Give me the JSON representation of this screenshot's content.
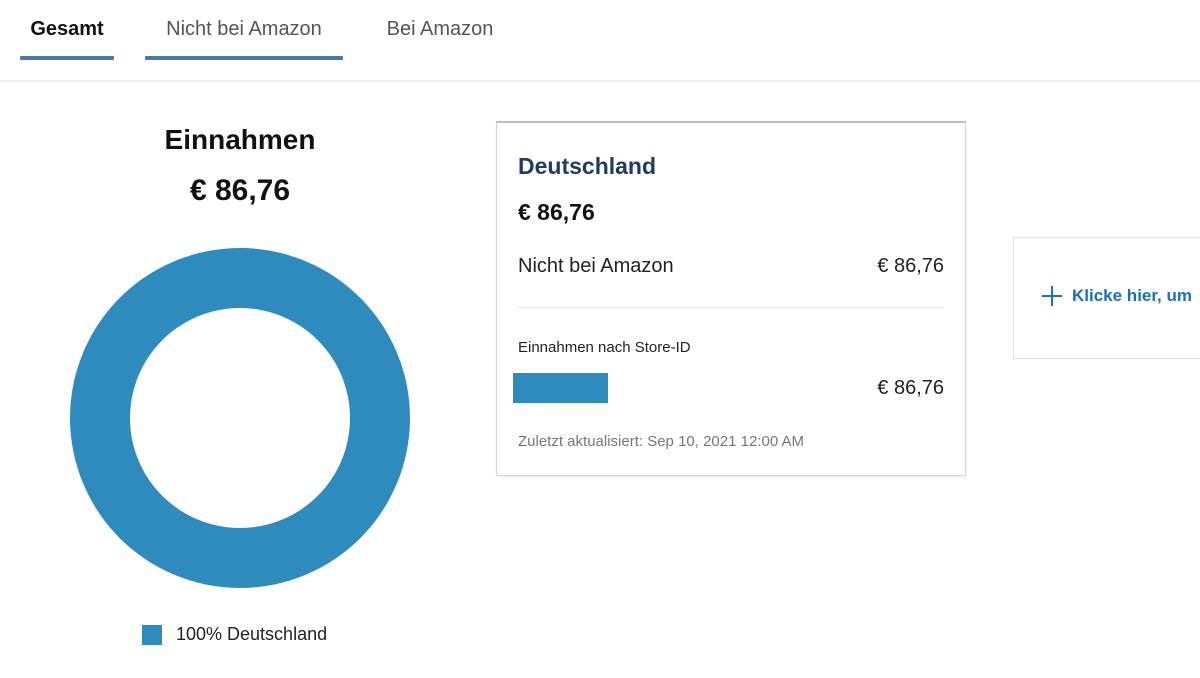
{
  "tabs": [
    {
      "label": "Gesamt",
      "active": true
    },
    {
      "label": "Nicht bei Amazon",
      "active": false
    },
    {
      "label": "Bei Amazon",
      "active": false
    }
  ],
  "summary": {
    "title": "Einnahmen",
    "amount": "€ 86,76"
  },
  "chart_data": {
    "type": "pie",
    "donut": true,
    "categories": [
      "Deutschland"
    ],
    "values": [
      100
    ],
    "colors": [
      "#2e8bbd"
    ],
    "legend": [
      "100% Deutschland"
    ],
    "legend_placement": "bottom"
  },
  "card": {
    "country": "Deutschland",
    "total": "€ 86,76",
    "nicht_bei_amazon_label": "Nicht bei Amazon",
    "nicht_bei_amazon_value": "€ 86,76",
    "store_heading": "Einnahmen nach Store-ID",
    "store_value": "€ 86,76",
    "updated": "Zuletzt aktualisiert: Sep 10, 2021 12:00 AM"
  },
  "add_card": {
    "link_label": "Klicke hier, um",
    "icon": "plus-icon"
  },
  "colors": {
    "accent": "#2e8bbd",
    "tab_underline": "#4a78a8",
    "country_heading": "#1f3d63",
    "link": "#1e6fb8"
  }
}
